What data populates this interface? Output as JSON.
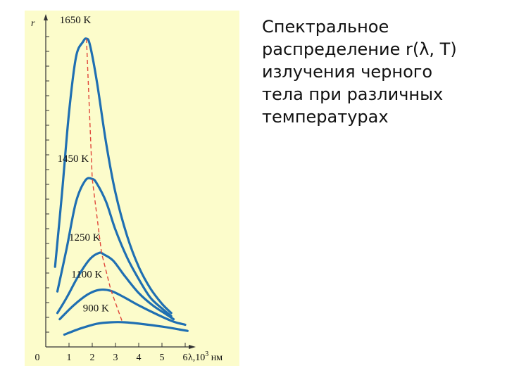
{
  "caption": {
    "lines": [
      "Спектральное",
      "распределение r(λ, T)",
      "излучения черного",
      "тела при различных",
      "температурах"
    ]
  },
  "colors": {
    "panel_background": "#FCFCCB",
    "curve": "#1F6FB2",
    "peak_line": "#E0463A",
    "axis": "#333333"
  },
  "chart_data": {
    "type": "line",
    "ylabel": "r",
    "xlabel": "λ,10³ нм",
    "xlabel_parts": {
      "main": "λ,10",
      "sup": "3",
      "unit": "нм"
    },
    "xticks": [
      "0",
      "1",
      "2",
      "3",
      "4",
      "5",
      "6"
    ],
    "xlim": [
      0,
      7
    ],
    "ylim": [
      0,
      10
    ],
    "grid": false,
    "series": [
      {
        "name": "1650 K",
        "x": [
          0.4,
          0.7,
          1.0,
          1.3,
          1.6,
          1.75,
          1.9,
          2.2,
          2.6,
          3.0,
          3.5,
          4.0,
          4.5,
          5.0,
          5.4
        ],
        "y": [
          2.6,
          5.0,
          7.6,
          9.4,
          9.9,
          10.0,
          9.8,
          8.6,
          6.6,
          5.0,
          3.6,
          2.6,
          1.9,
          1.4,
          1.1
        ]
      },
      {
        "name": "1450 K",
        "x": [
          0.5,
          0.9,
          1.3,
          1.7,
          2.0,
          2.2,
          2.6,
          3.0,
          3.5,
          4.0,
          4.5,
          5.0,
          5.4
        ],
        "y": [
          1.8,
          3.2,
          4.7,
          5.4,
          5.45,
          5.3,
          4.7,
          3.8,
          2.9,
          2.2,
          1.6,
          1.25,
          1.0
        ]
      },
      {
        "name": "1250 K",
        "x": [
          0.5,
          0.9,
          1.4,
          1.9,
          2.3,
          2.5,
          2.9,
          3.4,
          4.0,
          4.6,
          5.2,
          5.5
        ],
        "y": [
          1.1,
          1.6,
          2.3,
          2.85,
          3.05,
          3.0,
          2.8,
          2.3,
          1.75,
          1.35,
          1.05,
          0.9
        ]
      },
      {
        "name": "1100 K",
        "x": [
          0.6,
          1.2,
          1.8,
          2.3,
          2.8,
          3.4,
          4.0,
          4.8,
          5.5,
          6.0
        ],
        "y": [
          0.9,
          1.35,
          1.7,
          1.85,
          1.82,
          1.6,
          1.35,
          1.05,
          0.82,
          0.72
        ]
      },
      {
        "name": "900 K",
        "x": [
          0.8,
          1.5,
          2.2,
          2.8,
          3.4,
          4.2,
          5.0,
          5.8,
          6.1
        ],
        "y": [
          0.4,
          0.6,
          0.75,
          0.8,
          0.8,
          0.74,
          0.66,
          0.56,
          0.52
        ]
      }
    ],
    "peak_line": {
      "x": [
        1.75,
        2.0,
        2.4,
        2.8,
        3.3
      ],
      "y": [
        10.0,
        5.45,
        3.05,
        1.85,
        0.8
      ]
    },
    "annotations": [
      {
        "text": "1650 K",
        "x": 0.6,
        "y": 10.5
      },
      {
        "text": "1450 K",
        "x": 0.5,
        "y": 6.0
      },
      {
        "text": "1250 K",
        "x": 1.0,
        "y": 3.45
      },
      {
        "text": "1100 K",
        "x": 1.1,
        "y": 2.25
      },
      {
        "text": "900 K",
        "x": 1.6,
        "y": 1.15
      }
    ]
  }
}
